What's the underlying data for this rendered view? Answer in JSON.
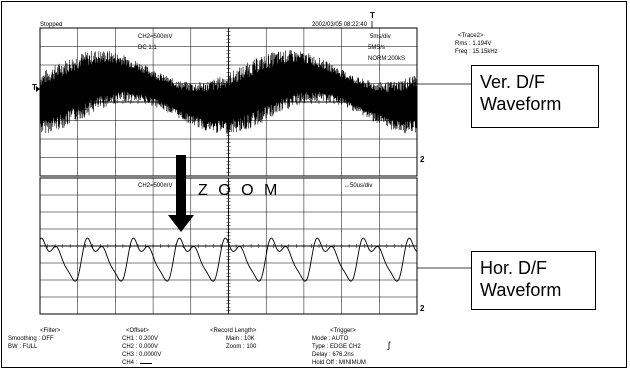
{
  "screen": {
    "status": "Stopped",
    "timestamp": "2002/03/05 08:22:40"
  },
  "top_panel": {
    "channel_scale": "CH2=500mV",
    "coupling": "DC 1:1",
    "timebase": "5ms/div",
    "sample_rate": "5MS/s",
    "acq_mode": "NORM:200kS"
  },
  "trace_info": {
    "title": "<Trace2>",
    "rms": "Rms : 1.194V",
    "freq": "Freq : 15.15kHz"
  },
  "bottom_panel": {
    "channel_scale": "CH2=500mV",
    "timebase": "↔50us/div"
  },
  "markers": {
    "trigger_marker": "T",
    "ch2_marker_top": "2",
    "ch2_marker_bottom": "2",
    "trigger_level_top": "T",
    "trigger_edge": "ʃ"
  },
  "zoom_label": "Z O O M",
  "callouts": {
    "vertical": [
      "Ver. D/F",
      "Waveform"
    ],
    "horizontal": [
      "Hor. D/F",
      "Waveform"
    ]
  },
  "settings": {
    "filter": {
      "title": "<Filter>",
      "lines": [
        "Smoothing : OFF",
        "BW : FULL"
      ]
    },
    "offset": {
      "title": "<Offset>",
      "lines": [
        "CH1 : 0.200V",
        "CH2 : 0.000V",
        "CH3 : 0.0000V",
        "CH4 :"
      ]
    },
    "record": {
      "title": "<Record Length>",
      "lines": [
        "Main : 10K",
        "Zoom : 100"
      ]
    },
    "trigger": {
      "title": "<Trigger>",
      "lines": [
        "Mode : AUTO",
        "Type : EDGE CH2",
        "Delay : 676.2ns",
        "Hold Off : MINIMUM"
      ]
    }
  },
  "colors": {
    "ink": "#000000",
    "paper": "#ffffff"
  }
}
